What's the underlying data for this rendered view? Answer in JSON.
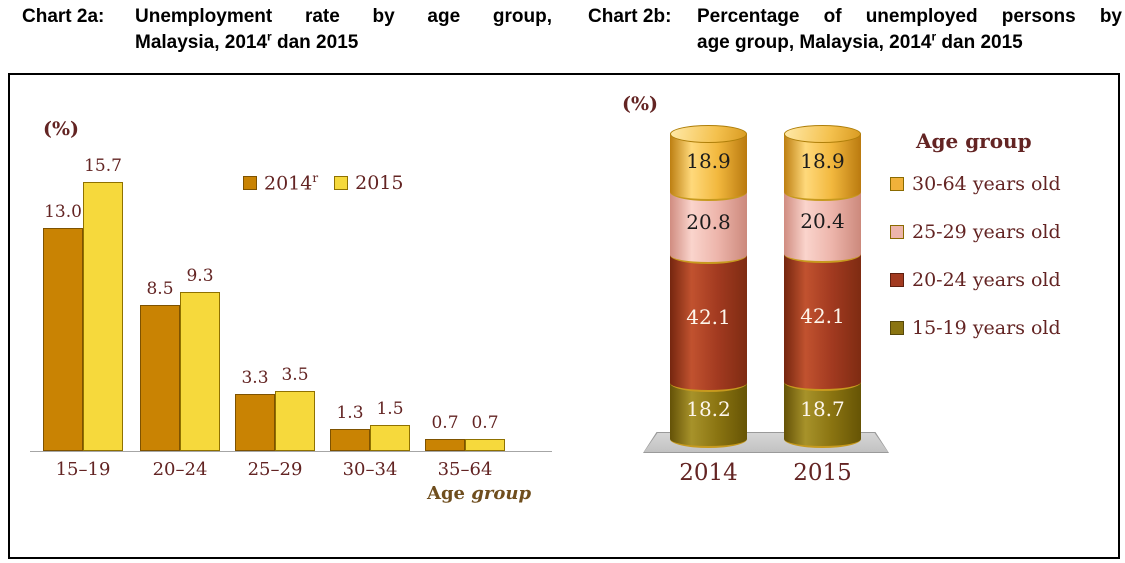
{
  "titles": {
    "chart2a": {
      "prefix": "Chart 2a:",
      "line1": "Unemployment rate by age group,",
      "line2": {
        "pre": "Malaysia, 2014",
        "sup": "r",
        "post": " dan 2015"
      }
    },
    "chart2b": {
      "prefix": "Chart 2b:",
      "line1": "Percentage of unemployed persons by",
      "line2": {
        "pre": "age group, Malaysia, 2014",
        "sup": "r",
        "post": " dan 2015"
      }
    }
  },
  "chart_data": [
    {
      "type": "bar",
      "title": "Unemployment rate by age group, Malaysia, 2014(r) dan 2015",
      "unit_label": "(%)",
      "xlabel": "Age group",
      "ylabel": "",
      "categories": [
        "15–19",
        "20–24",
        "25–29",
        "30–34",
        "35–64"
      ],
      "series": [
        {
          "name": "2014",
          "name_sup": "r",
          "values": [
            13.0,
            8.5,
            3.3,
            1.3,
            0.7
          ],
          "color": "#C98303",
          "border": "#7E5200"
        },
        {
          "name": "2015",
          "name_sup": "",
          "values": [
            15.7,
            9.3,
            3.5,
            1.5,
            0.7
          ],
          "color": "#F6D93C",
          "border": "#8F7100"
        }
      ],
      "value_labels": true,
      "gridlines": false,
      "ylim": [
        0,
        16.5
      ],
      "legend_position": "inside-top-right",
      "text_color": "#632423",
      "xlabel_color": "#6F4E1E",
      "axis_color": "#A6A6A6"
    },
    {
      "type": "stacked-bar",
      "shape": "cylinder",
      "title": "Percentage of unemployed persons by age group, Malaysia, 2014(r) dan 2015",
      "unit_label": "(%)",
      "categories": [
        "2014",
        "2015"
      ],
      "series": [
        {
          "name": "15-19 years old",
          "values": [
            18.2,
            18.7
          ],
          "color": "#8A7411",
          "gradient": [
            "#645207",
            "#A7922A",
            "#8A7411",
            "#665405"
          ],
          "label_color": "#FDF6EC",
          "swatch_border": "#57480A"
        },
        {
          "name": "20-24 years old",
          "values": [
            42.1,
            42.1
          ],
          "color": "#A23A20",
          "gradient": [
            "#75260F",
            "#C1522F",
            "#A23A20",
            "#7E2B12"
          ],
          "label_color": "#FDF6EC",
          "swatch_border": "#5E1F10"
        },
        {
          "name": "25-29 years old",
          "values": [
            20.8,
            20.4
          ],
          "color": "#EDB5AB",
          "gradient": [
            "#D08C80",
            "#FAD4CC",
            "#EDB5AB",
            "#CC897C"
          ],
          "label_color": "#1C1C1C",
          "swatch_border": "#8A6A00"
        },
        {
          "name": "30-64 years old",
          "values": [
            18.9,
            18.9
          ],
          "color": "#F0B13A",
          "gradient": [
            "#BD7F12",
            "#FFD97B",
            "#F2B83E",
            "#BA7A0F"
          ],
          "label_color": "#1C1C1C",
          "swatch_border": "#8A6A00"
        }
      ],
      "cap_gradient": [
        "#FFE9A8",
        "#F4C14E",
        "#D99B22"
      ],
      "legend_title": "Age group",
      "legend_order_top_to_bottom": [
        "30-64 years old",
        "25-29 years old",
        "20-24 years old",
        "15-19 years old"
      ],
      "value_labels": true,
      "stack_total": 100,
      "text_color": "#632423",
      "platform_color": "#CCCCCC"
    }
  ]
}
